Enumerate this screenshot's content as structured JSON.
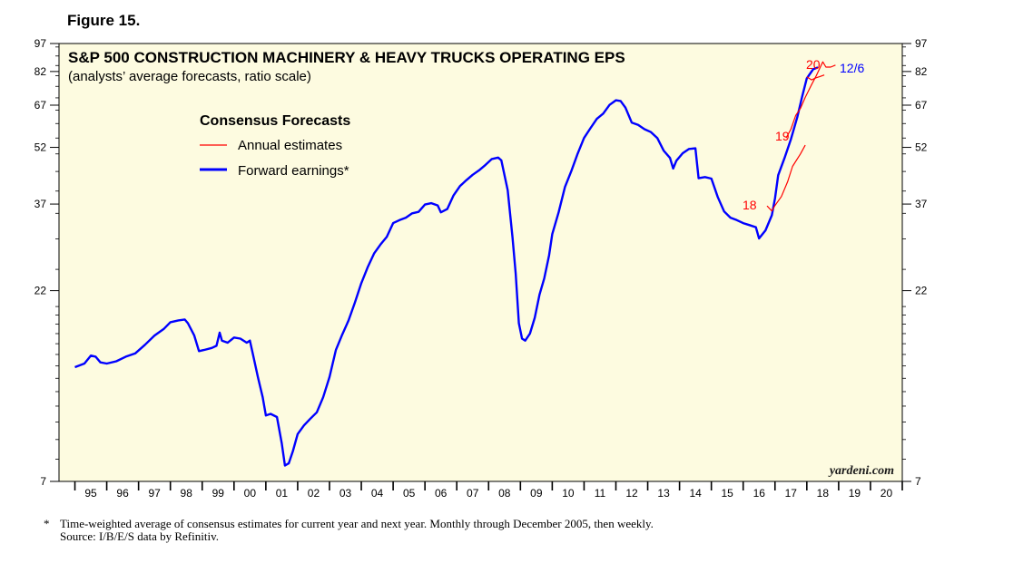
{
  "figure_label": "Figure 15.",
  "chart_data": {
    "type": "line",
    "title": "S&P 500 CONSTRUCTION MACHINERY & HEAVY TRUCKS OPERATING EPS",
    "subtitle": "(analysts’ average forecasts, ratio scale)",
    "legend_title": "Consensus Forecasts",
    "legend_position": "top-left",
    "scale": "log",
    "ylim": [
      7,
      97
    ],
    "y_ticks": [
      7,
      22,
      37,
      52,
      67,
      82,
      97
    ],
    "xlim": [
      1994.5,
      2021.0
    ],
    "x_tick_labels": [
      "95",
      "96",
      "97",
      "98",
      "99",
      "00",
      "01",
      "02",
      "03",
      "04",
      "05",
      "06",
      "07",
      "08",
      "09",
      "10",
      "11",
      "12",
      "13",
      "14",
      "15",
      "16",
      "17",
      "18",
      "19",
      "20"
    ],
    "watermark": "yardeni.com",
    "colors": {
      "background": "#fdfbe0",
      "forward": "#0000ff",
      "annual": "#ff0000",
      "axis": "#000000"
    },
    "series": [
      {
        "name": "Forward earnings*",
        "color": "#0000ff",
        "points": [
          [
            1995.0,
            13.9
          ],
          [
            1995.3,
            14.2
          ],
          [
            1995.5,
            14.9
          ],
          [
            1995.65,
            14.8
          ],
          [
            1995.8,
            14.3
          ],
          [
            1996.0,
            14.2
          ],
          [
            1996.3,
            14.4
          ],
          [
            1996.6,
            14.8
          ],
          [
            1996.9,
            15.1
          ],
          [
            1997.2,
            15.9
          ],
          [
            1997.5,
            16.8
          ],
          [
            1997.8,
            17.5
          ],
          [
            1998.0,
            18.2
          ],
          [
            1998.25,
            18.4
          ],
          [
            1998.45,
            18.5
          ],
          [
            1998.55,
            18.1
          ],
          [
            1998.75,
            16.8
          ],
          [
            1998.9,
            15.3
          ],
          [
            1999.05,
            15.4
          ],
          [
            1999.3,
            15.6
          ],
          [
            1999.45,
            15.8
          ],
          [
            1999.55,
            17.1
          ],
          [
            1999.62,
            16.3
          ],
          [
            1999.8,
            16.1
          ],
          [
            2000.0,
            16.6
          ],
          [
            2000.2,
            16.5
          ],
          [
            2000.4,
            16.1
          ],
          [
            2000.5,
            16.3
          ],
          [
            2000.62,
            14.7
          ],
          [
            2000.75,
            13.1
          ],
          [
            2000.9,
            11.6
          ],
          [
            2001.0,
            10.4
          ],
          [
            2001.15,
            10.5
          ],
          [
            2001.35,
            10.3
          ],
          [
            2001.5,
            8.8
          ],
          [
            2001.6,
            7.7
          ],
          [
            2001.72,
            7.8
          ],
          [
            2001.85,
            8.4
          ],
          [
            2002.0,
            9.3
          ],
          [
            2002.2,
            9.8
          ],
          [
            2002.4,
            10.2
          ],
          [
            2002.6,
            10.6
          ],
          [
            2002.8,
            11.6
          ],
          [
            2003.0,
            13.1
          ],
          [
            2003.2,
            15.4
          ],
          [
            2003.4,
            16.9
          ],
          [
            2003.6,
            18.4
          ],
          [
            2003.8,
            20.5
          ],
          [
            2004.0,
            23.0
          ],
          [
            2004.2,
            25.3
          ],
          [
            2004.4,
            27.5
          ],
          [
            2004.6,
            29.0
          ],
          [
            2004.8,
            30.4
          ],
          [
            2005.0,
            33.0
          ],
          [
            2005.2,
            33.6
          ],
          [
            2005.4,
            34.1
          ],
          [
            2005.6,
            35.0
          ],
          [
            2005.8,
            35.3
          ],
          [
            2006.0,
            36.9
          ],
          [
            2006.2,
            37.2
          ],
          [
            2006.4,
            36.7
          ],
          [
            2006.5,
            35.2
          ],
          [
            2006.7,
            35.9
          ],
          [
            2006.9,
            39.0
          ],
          [
            2007.1,
            41.2
          ],
          [
            2007.3,
            42.7
          ],
          [
            2007.5,
            44.1
          ],
          [
            2007.7,
            45.3
          ],
          [
            2007.9,
            46.8
          ],
          [
            2008.1,
            48.5
          ],
          [
            2008.3,
            48.9
          ],
          [
            2008.4,
            48.1
          ],
          [
            2008.6,
            40.2
          ],
          [
            2008.75,
            30.3
          ],
          [
            2008.85,
            24.4
          ],
          [
            2008.95,
            18.1
          ],
          [
            2009.05,
            16.5
          ],
          [
            2009.15,
            16.3
          ],
          [
            2009.3,
            17.0
          ],
          [
            2009.45,
            18.7
          ],
          [
            2009.6,
            21.5
          ],
          [
            2009.75,
            23.7
          ],
          [
            2009.9,
            27.2
          ],
          [
            2010.0,
            30.9
          ],
          [
            2010.2,
            35.2
          ],
          [
            2010.4,
            41.0
          ],
          [
            2010.6,
            45.1
          ],
          [
            2010.8,
            50.1
          ],
          [
            2011.0,
            55.0
          ],
          [
            2011.2,
            58.3
          ],
          [
            2011.4,
            61.7
          ],
          [
            2011.6,
            63.7
          ],
          [
            2011.8,
            67.1
          ],
          [
            2012.0,
            69.0
          ],
          [
            2012.15,
            68.7
          ],
          [
            2012.3,
            66.0
          ],
          [
            2012.5,
            60.3
          ],
          [
            2012.7,
            59.5
          ],
          [
            2012.9,
            58.0
          ],
          [
            2013.1,
            57.0
          ],
          [
            2013.3,
            55.0
          ],
          [
            2013.5,
            51.0
          ],
          [
            2013.7,
            48.8
          ],
          [
            2013.8,
            45.8
          ],
          [
            2013.9,
            48.0
          ],
          [
            2014.1,
            50.2
          ],
          [
            2014.3,
            51.5
          ],
          [
            2014.5,
            51.7
          ],
          [
            2014.6,
            43.2
          ],
          [
            2014.8,
            43.5
          ],
          [
            2015.0,
            43.1
          ],
          [
            2015.2,
            38.6
          ],
          [
            2015.4,
            35.4
          ],
          [
            2015.6,
            34.1
          ],
          [
            2015.8,
            33.6
          ],
          [
            2016.0,
            33.0
          ],
          [
            2016.2,
            32.6
          ],
          [
            2016.4,
            32.2
          ],
          [
            2016.5,
            30.1
          ],
          [
            2016.7,
            31.6
          ],
          [
            2016.9,
            34.6
          ],
          [
            2017.0,
            38.3
          ],
          [
            2017.1,
            44.0
          ],
          [
            2017.3,
            48.8
          ],
          [
            2017.5,
            54.6
          ],
          [
            2017.7,
            62.3
          ],
          [
            2017.85,
            70.4
          ],
          [
            2018.0,
            78.7
          ],
          [
            2018.2,
            83.1
          ],
          [
            2018.35,
            84.0
          ]
        ]
      },
      {
        "name": "Annual estimates",
        "color": "#ff0000",
        "segments": [
          {
            "label": "18",
            "points": [
              [
                2016.75,
                36.6
              ],
              [
                2016.9,
                35.5
              ],
              [
                2017.0,
                36.7
              ],
              [
                2017.2,
                38.7
              ],
              [
                2017.4,
                42.4
              ],
              [
                2017.55,
                46.4
              ],
              [
                2017.8,
                50.0
              ],
              [
                2017.95,
                52.7
              ]
            ]
          },
          {
            "label": "19",
            "points": [
              [
                2017.35,
                55.0
              ],
              [
                2017.5,
                58.0
              ],
              [
                2017.65,
                63.0
              ],
              [
                2017.8,
                65.7
              ],
              [
                2017.95,
                70.2
              ],
              [
                2018.15,
                75.8
              ],
              [
                2018.3,
                80.0
              ],
              [
                2018.5,
                86.9
              ],
              [
                2018.6,
                84.2
              ],
              [
                2018.75,
                84.2
              ],
              [
                2018.9,
                85.2
              ]
            ]
          },
          {
            "label": "20",
            "points": [
              [
                2018.0,
                79.4
              ],
              [
                2018.15,
                78.0
              ],
              [
                2018.3,
                79.0
              ],
              [
                2018.4,
                79.5
              ],
              [
                2018.55,
                80.3
              ]
            ]
          }
        ]
      }
    ],
    "annotations": [
      {
        "text": "18",
        "color": "#ff0000"
      },
      {
        "text": "19",
        "color": "#ff0000"
      },
      {
        "text": "20",
        "color": "#ff0000"
      },
      {
        "text": "12/6",
        "color": "#0000ff"
      }
    ],
    "legend": [
      {
        "label": "Annual estimates",
        "color": "#ff0000"
      },
      {
        "label": "Forward earnings*",
        "color": "#0000ff"
      }
    ]
  },
  "footnote": {
    "marker": "*",
    "note": "Time-weighted average of consensus estimates for current year and next year. Monthly through December 2005, then weekly.",
    "source": "Source: I/B/E/S data by Refinitiv."
  }
}
